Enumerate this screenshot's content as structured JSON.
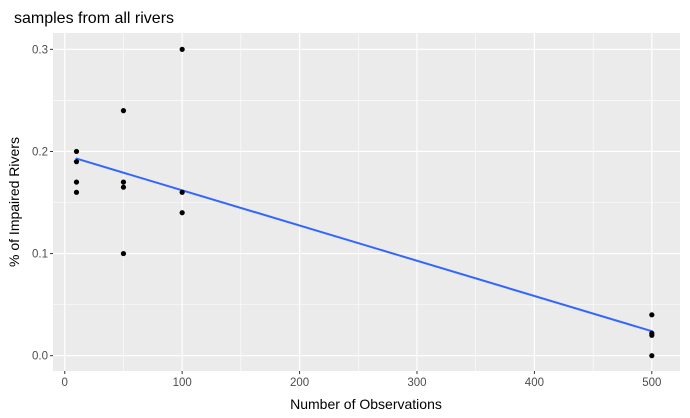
{
  "chart_data": {
    "type": "scatter",
    "title": "samples from all rivers",
    "xlabel": "Number of Observations",
    "ylabel": "% of Impaired Rivers",
    "xlim": [
      -10,
      524
    ],
    "ylim": [
      -0.015,
      0.316
    ],
    "x_ticks": [
      0,
      100,
      200,
      300,
      400,
      500
    ],
    "x_tick_labels": [
      "0",
      "100",
      "200",
      "300",
      "400",
      "500"
    ],
    "y_ticks": [
      0.0,
      0.1,
      0.2,
      0.3
    ],
    "y_tick_labels": [
      "0.0",
      "0.1",
      "0.2",
      "0.3"
    ],
    "grid": true,
    "points": [
      {
        "x": 10,
        "y": 0.2
      },
      {
        "x": 10,
        "y": 0.19
      },
      {
        "x": 10,
        "y": 0.17
      },
      {
        "x": 10,
        "y": 0.16
      },
      {
        "x": 50,
        "y": 0.24
      },
      {
        "x": 50,
        "y": 0.17
      },
      {
        "x": 50,
        "y": 0.165
      },
      {
        "x": 50,
        "y": 0.1
      },
      {
        "x": 100,
        "y": 0.3
      },
      {
        "x": 100,
        "y": 0.16
      },
      {
        "x": 100,
        "y": 0.14
      },
      {
        "x": 500,
        "y": 0.04
      },
      {
        "x": 500,
        "y": 0.022
      },
      {
        "x": 500,
        "y": 0.02
      },
      {
        "x": 500,
        "y": 0.0
      }
    ],
    "trend_line": {
      "x": [
        10,
        500
      ],
      "y": [
        0.193,
        0.024
      ]
    },
    "colors": {
      "panel": "#ebebeb",
      "grid": "#ffffff",
      "points": "#000000",
      "trend": "#3366ff",
      "tick_text": "#4d4d4d",
      "tick_mark": "#333333"
    }
  }
}
